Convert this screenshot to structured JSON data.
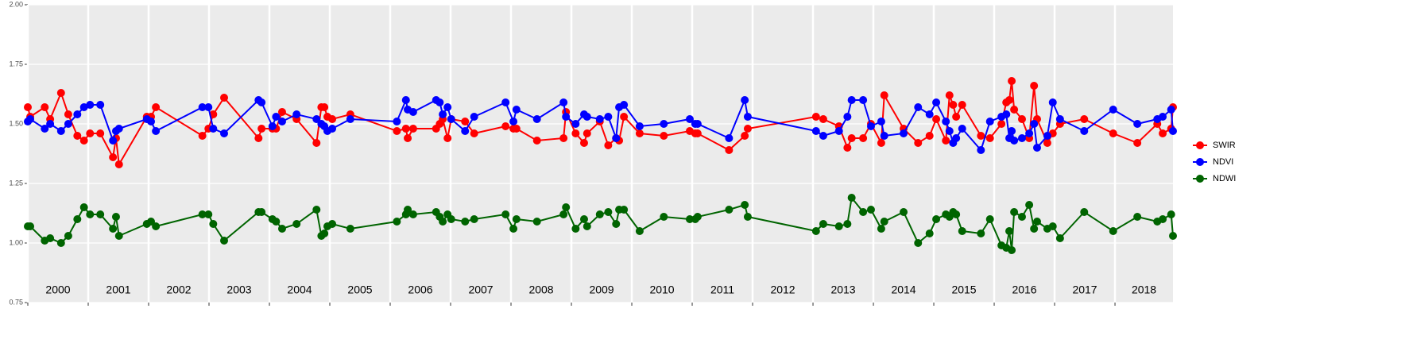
{
  "chart_data": {
    "type": "line",
    "x": [
      2000.0,
      2000.04,
      2000.28,
      2000.37,
      2000.55,
      2000.67,
      2000.82,
      2000.93,
      2001.03,
      2001.2,
      2001.41,
      2001.46,
      2001.51,
      2001.97,
      2002.04,
      2002.12,
      2002.89,
      2002.99,
      2003.07,
      2003.25,
      2003.82,
      2003.87,
      2004.05,
      2004.11,
      2004.21,
      2004.45,
      2004.78,
      2004.86,
      2004.91,
      2004.96,
      2005.04,
      2005.34,
      2006.11,
      2006.26,
      2006.29,
      2006.38,
      2006.76,
      2006.82,
      2006.87,
      2006.95,
      2007.01,
      2007.24,
      2007.39,
      2007.91,
      2008.04,
      2008.09,
      2008.43,
      2008.87,
      2008.91,
      2009.07,
      2009.21,
      2009.26,
      2009.47,
      2009.61,
      2009.74,
      2009.79,
      2009.87,
      2010.13,
      2010.53,
      2010.96,
      2011.05,
      2011.09,
      2011.61,
      2011.87,
      2011.92,
      2013.05,
      2013.17,
      2013.43,
      2013.57,
      2013.64,
      2013.83,
      2013.96,
      2014.13,
      2014.18,
      2014.5,
      2014.74,
      2014.93,
      2015.04,
      2015.2,
      2015.26,
      2015.32,
      2015.37,
      2015.47,
      2015.78,
      2015.93,
      2016.12,
      2016.2,
      2016.25,
      2016.29,
      2016.33,
      2016.46,
      2016.58,
      2016.66,
      2016.71,
      2016.88,
      2016.97,
      2017.09,
      2017.49,
      2017.97,
      2018.37,
      2018.7,
      2018.79,
      2018.93,
      2018.96
    ],
    "series": [
      {
        "name": "SWIR",
        "color": "#ff0000",
        "values": [
          1.57,
          1.53,
          1.57,
          1.52,
          1.63,
          1.54,
          1.45,
          1.43,
          1.46,
          1.46,
          1.36,
          1.44,
          1.33,
          1.53,
          1.53,
          1.57,
          1.45,
          1.48,
          1.54,
          1.61,
          1.44,
          1.48,
          1.48,
          1.48,
          1.55,
          1.52,
          1.42,
          1.57,
          1.57,
          1.53,
          1.52,
          1.54,
          1.47,
          1.48,
          1.44,
          1.48,
          1.48,
          1.5,
          1.52,
          1.44,
          1.52,
          1.51,
          1.46,
          1.49,
          1.48,
          1.48,
          1.43,
          1.44,
          1.55,
          1.46,
          1.42,
          1.46,
          1.51,
          1.41,
          1.44,
          1.43,
          1.53,
          1.46,
          1.45,
          1.47,
          1.46,
          1.46,
          1.39,
          1.45,
          1.48,
          1.53,
          1.52,
          1.49,
          1.4,
          1.44,
          1.44,
          1.5,
          1.42,
          1.62,
          1.48,
          1.42,
          1.45,
          1.52,
          1.43,
          1.62,
          1.58,
          1.53,
          1.58,
          1.45,
          1.44,
          1.5,
          1.59,
          1.6,
          1.68,
          1.56,
          1.52,
          1.44,
          1.66,
          1.52,
          1.42,
          1.46,
          1.5,
          1.52,
          1.46,
          1.42,
          1.5,
          1.46,
          1.48,
          1.57
        ]
      },
      {
        "name": "NDVI",
        "color": "#0000ff",
        "values": [
          1.51,
          1.52,
          1.48,
          1.5,
          1.47,
          1.5,
          1.54,
          1.57,
          1.58,
          1.58,
          1.43,
          1.47,
          1.48,
          1.52,
          1.51,
          1.47,
          1.57,
          1.57,
          1.48,
          1.46,
          1.6,
          1.59,
          1.49,
          1.53,
          1.51,
          1.54,
          1.52,
          1.5,
          1.49,
          1.47,
          1.48,
          1.52,
          1.51,
          1.6,
          1.56,
          1.55,
          1.6,
          1.59,
          1.54,
          1.57,
          1.52,
          1.47,
          1.53,
          1.59,
          1.51,
          1.56,
          1.52,
          1.59,
          1.53,
          1.5,
          1.54,
          1.53,
          1.52,
          1.53,
          1.44,
          1.57,
          1.58,
          1.49,
          1.5,
          1.52,
          1.5,
          1.5,
          1.44,
          1.6,
          1.53,
          1.47,
          1.45,
          1.47,
          1.53,
          1.6,
          1.6,
          1.49,
          1.51,
          1.45,
          1.46,
          1.57,
          1.54,
          1.59,
          1.51,
          1.47,
          1.42,
          1.44,
          1.48,
          1.39,
          1.51,
          1.53,
          1.54,
          1.44,
          1.47,
          1.43,
          1.44,
          1.46,
          1.5,
          1.4,
          1.45,
          1.59,
          1.52,
          1.47,
          1.56,
          1.5,
          1.52,
          1.53,
          1.56,
          1.47
        ]
      },
      {
        "name": "NDWI",
        "color": "#006400",
        "values": [
          1.07,
          1.07,
          1.01,
          1.02,
          1.0,
          1.03,
          1.1,
          1.15,
          1.12,
          1.12,
          1.06,
          1.11,
          1.03,
          1.08,
          1.09,
          1.07,
          1.12,
          1.12,
          1.08,
          1.01,
          1.13,
          1.13,
          1.1,
          1.09,
          1.06,
          1.08,
          1.14,
          1.03,
          1.04,
          1.07,
          1.08,
          1.06,
          1.09,
          1.12,
          1.14,
          1.12,
          1.13,
          1.11,
          1.09,
          1.12,
          1.1,
          1.09,
          1.1,
          1.12,
          1.06,
          1.1,
          1.09,
          1.12,
          1.15,
          1.06,
          1.1,
          1.07,
          1.12,
          1.13,
          1.08,
          1.14,
          1.14,
          1.05,
          1.11,
          1.1,
          1.1,
          1.11,
          1.14,
          1.16,
          1.11,
          1.05,
          1.08,
          1.07,
          1.08,
          1.19,
          1.13,
          1.14,
          1.06,
          1.09,
          1.13,
          1.0,
          1.04,
          1.1,
          1.12,
          1.11,
          1.13,
          1.12,
          1.05,
          1.04,
          1.1,
          0.99,
          0.98,
          1.05,
          0.97,
          1.13,
          1.11,
          1.16,
          1.06,
          1.09,
          1.06,
          1.07,
          1.02,
          1.13,
          1.05,
          1.11,
          1.09,
          1.1,
          1.12,
          1.03
        ]
      }
    ],
    "xlim": [
      2000,
      2018.96
    ],
    "xticks": [
      2000,
      2001,
      2002,
      2003,
      2004,
      2005,
      2006,
      2007,
      2008,
      2009,
      2010,
      2011,
      2012,
      2013,
      2014,
      2015,
      2016,
      2017,
      2018
    ],
    "ylim": [
      0.75,
      2.0
    ],
    "yticks": [
      0.75,
      {
        "value": 1,
        "label": "1.00"
      },
      1.25,
      {
        "value": 1.5,
        "label": "1.50"
      },
      1.75,
      {
        "value": 2,
        "label": "2.00"
      }
    ],
    "grid": true,
    "legend": "right"
  }
}
